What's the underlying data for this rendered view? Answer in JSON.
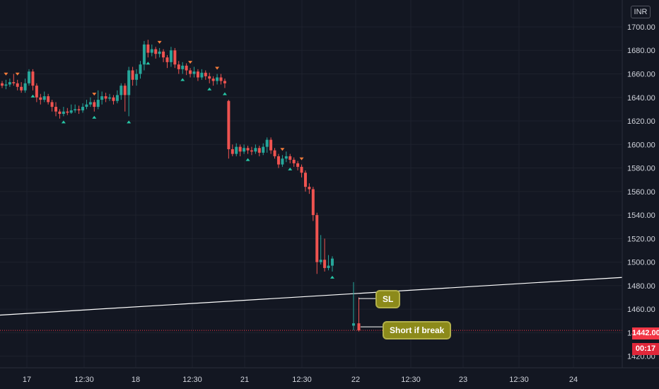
{
  "chart_data": {
    "type": "candlestick",
    "currency": "INR",
    "current_price": "1442.00",
    "countdown": "00:17",
    "y_ticks": [
      "1700.00",
      "1680.00",
      "1660.00",
      "1640.00",
      "1620.00",
      "1600.00",
      "1580.00",
      "1560.00",
      "1540.00",
      "1520.00",
      "1500.00",
      "1480.00",
      "1460.00",
      "1440.00",
      "1420.00"
    ],
    "x_ticks": [
      "17",
      "12:30",
      "18",
      "12:30",
      "21",
      "12:30",
      "22",
      "12:30",
      "23",
      "12:30",
      "24"
    ],
    "ylim": [
      1415,
      1712
    ],
    "annotations": [
      {
        "label": "SL",
        "price": 1469
      },
      {
        "label": "Short if break",
        "price": 1445
      }
    ],
    "trendline": {
      "from_price": 1455,
      "to_price": 1487
    },
    "candles": [
      [
        1652,
        1650,
        1654,
        1648
      ],
      [
        1650,
        1651,
        1655,
        1647
      ],
      [
        1651,
        1653,
        1656,
        1649
      ],
      [
        1653,
        1652,
        1660,
        1650
      ],
      [
        1652,
        1649,
        1655,
        1646
      ],
      [
        1649,
        1646,
        1653,
        1644
      ],
      [
        1646,
        1652,
        1656,
        1644
      ],
      [
        1652,
        1662,
        1664,
        1650
      ],
      [
        1662,
        1650,
        1664,
        1646
      ],
      [
        1650,
        1640,
        1652,
        1636
      ],
      [
        1640,
        1638,
        1643,
        1634
      ],
      [
        1638,
        1641,
        1645,
        1636
      ],
      [
        1641,
        1636,
        1643,
        1634
      ],
      [
        1636,
        1632,
        1638,
        1628
      ],
      [
        1632,
        1628,
        1636,
        1624
      ],
      [
        1628,
        1626,
        1630,
        1622
      ],
      [
        1626,
        1628,
        1632,
        1624
      ],
      [
        1628,
        1627,
        1631,
        1625
      ],
      [
        1627,
        1629,
        1634,
        1626
      ],
      [
        1629,
        1630,
        1634,
        1627
      ],
      [
        1630,
        1629,
        1633,
        1626
      ],
      [
        1629,
        1632,
        1635,
        1627
      ],
      [
        1632,
        1634,
        1638,
        1630
      ],
      [
        1634,
        1636,
        1640,
        1632
      ],
      [
        1636,
        1632,
        1638,
        1628
      ],
      [
        1632,
        1638,
        1646,
        1630
      ],
      [
        1638,
        1641,
        1645,
        1634
      ],
      [
        1641,
        1639,
        1644,
        1636
      ],
      [
        1639,
        1640,
        1643,
        1637
      ],
      [
        1640,
        1637,
        1642,
        1634
      ],
      [
        1637,
        1642,
        1646,
        1635
      ],
      [
        1642,
        1650,
        1652,
        1638
      ],
      [
        1650,
        1642,
        1652,
        1628
      ],
      [
        1642,
        1663,
        1666,
        1624
      ],
      [
        1663,
        1655,
        1666,
        1650
      ],
      [
        1655,
        1660,
        1664,
        1650
      ],
      [
        1660,
        1668,
        1671,
        1656
      ],
      [
        1668,
        1685,
        1688,
        1663
      ],
      [
        1685,
        1678,
        1689,
        1674
      ],
      [
        1678,
        1681,
        1685,
        1675
      ],
      [
        1681,
        1677,
        1683,
        1673
      ],
      [
        1677,
        1679,
        1682,
        1674
      ],
      [
        1679,
        1674,
        1681,
        1670
      ],
      [
        1674,
        1670,
        1676,
        1665
      ],
      [
        1670,
        1680,
        1683,
        1666
      ],
      [
        1680,
        1668,
        1682,
        1665
      ],
      [
        1668,
        1664,
        1671,
        1660
      ],
      [
        1664,
        1667,
        1670,
        1660
      ],
      [
        1667,
        1663,
        1669,
        1659
      ],
      [
        1663,
        1660,
        1665,
        1657
      ],
      [
        1660,
        1662,
        1666,
        1657
      ],
      [
        1662,
        1657,
        1664,
        1654
      ],
      [
        1657,
        1661,
        1664,
        1655
      ],
      [
        1661,
        1658,
        1663,
        1655
      ],
      [
        1658,
        1656,
        1661,
        1652
      ],
      [
        1656,
        1654,
        1658,
        1650
      ],
      [
        1654,
        1657,
        1660,
        1651
      ],
      [
        1657,
        1654,
        1660,
        1651
      ],
      [
        1654,
        1652,
        1656,
        1648
      ],
      [
        1637,
        1596,
        1638,
        1588
      ],
      [
        1596,
        1592,
        1600,
        1590
      ],
      [
        1592,
        1598,
        1601,
        1590
      ],
      [
        1598,
        1594,
        1600,
        1590
      ],
      [
        1594,
        1597,
        1600,
        1592
      ],
      [
        1597,
        1595,
        1599,
        1592
      ],
      [
        1595,
        1594,
        1598,
        1591
      ],
      [
        1594,
        1597,
        1600,
        1592
      ],
      [
        1597,
        1593,
        1599,
        1590
      ],
      [
        1593,
        1598,
        1601,
        1591
      ],
      [
        1598,
        1604,
        1606,
        1593
      ],
      [
        1604,
        1595,
        1606,
        1592
      ],
      [
        1595,
        1590,
        1597,
        1588
      ],
      [
        1590,
        1583,
        1592,
        1580
      ],
      [
        1583,
        1588,
        1591,
        1581
      ],
      [
        1588,
        1590,
        1594,
        1585
      ],
      [
        1590,
        1587,
        1592,
        1584
      ],
      [
        1587,
        1584,
        1589,
        1581
      ],
      [
        1584,
        1581,
        1586,
        1578
      ],
      [
        1581,
        1576,
        1583,
        1572
      ],
      [
        1576,
        1564,
        1578,
        1560
      ],
      [
        1564,
        1562,
        1567,
        1558
      ],
      [
        1562,
        1540,
        1564,
        1535
      ],
      [
        1540,
        1500,
        1542,
        1490
      ],
      [
        1500,
        1502,
        1523,
        1498
      ],
      [
        1502,
        1495,
        1520,
        1492
      ],
      [
        1495,
        1497,
        1506,
        1493
      ],
      [
        1497,
        1503,
        1505,
        1492
      ],
      [
        1446,
        1448,
        1483,
        1442
      ],
      [
        1448,
        1442,
        1470,
        1441
      ]
    ]
  }
}
